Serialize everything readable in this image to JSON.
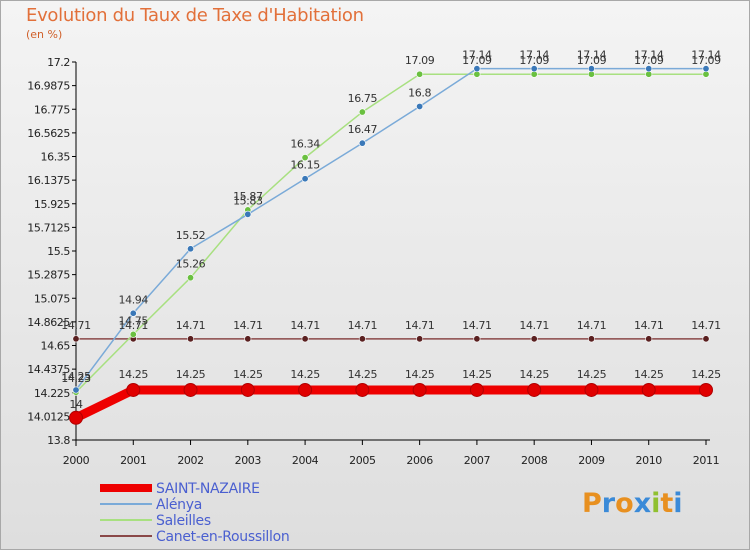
{
  "header": {
    "title": "Evolution du Taux de Taxe d'Habitation",
    "unit": "(en %)"
  },
  "logo": {
    "letters": [
      "P",
      "r",
      "o",
      "x",
      "i",
      "t",
      "i"
    ],
    "colors": [
      "#e89020",
      "#3a8ad8",
      "#e89020",
      "#3a8ad8",
      "#90c030",
      "#e89020",
      "#3a8ad8"
    ]
  },
  "chart_data": {
    "type": "line",
    "title": "Evolution du Taux de Taxe d'Habitation",
    "ylabel": "(en %)",
    "xlabel": "",
    "x": [
      "2000",
      "2001",
      "2002",
      "2003",
      "2004",
      "2005",
      "2006",
      "2007",
      "2008",
      "2009",
      "2010",
      "2011"
    ],
    "yticks": [
      "13.8",
      "14.0125",
      "14.225",
      "14.4375",
      "14.65",
      "14.8625",
      "15.075",
      "15.2875",
      "15.5",
      "15.7125",
      "15.925",
      "16.1375",
      "16.35",
      "16.5625",
      "16.775",
      "16.9875",
      "17.2"
    ],
    "ylim": [
      13.8,
      17.2
    ],
    "grid": false,
    "legend_position": "bottom-left",
    "series": [
      {
        "name": "SAINT-NAZAIRE",
        "color": "#ee0000",
        "values": [
          14,
          14.25,
          14.25,
          14.25,
          14.25,
          14.25,
          14.25,
          14.25,
          14.25,
          14.25,
          14.25,
          14.25
        ],
        "labels": [
          "14",
          "14.25",
          "14.25",
          "14.25",
          "14.25",
          "14.25",
          "14.25",
          "14.25",
          "14.25",
          "14.25",
          "14.25",
          "14.25"
        ]
      },
      {
        "name": "Alénya",
        "color": "#7aaad8",
        "marker": "#3a78b8",
        "values": [
          14.25,
          14.94,
          15.52,
          15.83,
          16.15,
          16.47,
          16.8,
          17.14,
          17.14,
          17.14,
          17.14,
          17.14
        ],
        "labels": [
          "14.25",
          "14.94",
          "15.52",
          "15.83",
          "16.15",
          "16.47",
          "16.8",
          "17.14",
          "17.14",
          "17.14",
          "17.14",
          "17.14"
        ]
      },
      {
        "name": "Saleilles",
        "color": "#a8e080",
        "marker": "#6ac040",
        "values": [
          14.23,
          14.75,
          15.26,
          15.87,
          16.34,
          16.75,
          17.09,
          17.09,
          17.09,
          17.09,
          17.09,
          17.09
        ],
        "labels": [
          "14.23",
          "14.75",
          "15.26",
          "15.87",
          "16.34",
          "16.75",
          "17.09",
          "17.09",
          "17.09",
          "17.09",
          "17.09",
          "17.09"
        ]
      },
      {
        "name": "Canet-en-Roussillon",
        "color": "#8a4848",
        "marker": "#5a2020",
        "values": [
          14.71,
          14.71,
          14.71,
          14.71,
          14.71,
          14.71,
          14.71,
          14.71,
          14.71,
          14.71,
          14.71,
          14.71
        ],
        "labels": [
          "14.71",
          "14.71",
          "14.71",
          "14.71",
          "14.71",
          "14.71",
          "14.71",
          "14.71",
          "14.71",
          "14.71",
          "14.71",
          "14.71"
        ]
      }
    ]
  }
}
